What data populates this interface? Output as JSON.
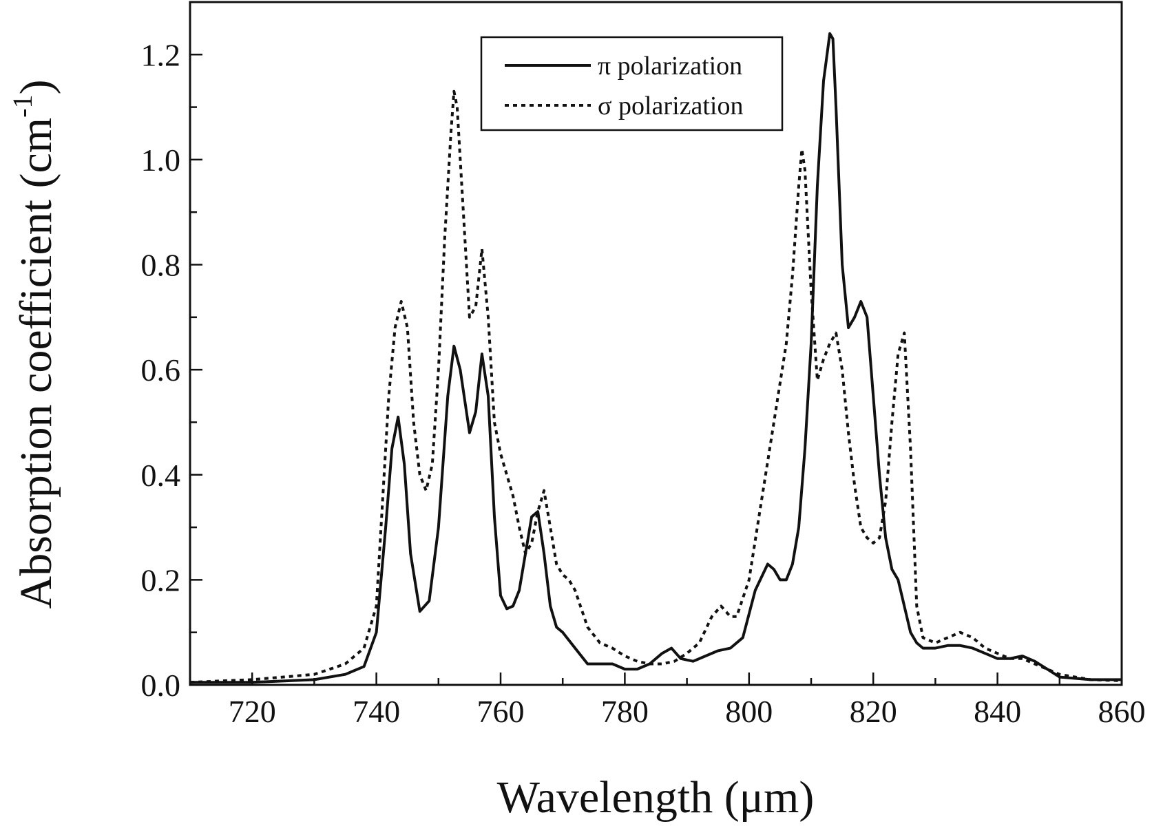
{
  "chart_data": {
    "type": "line",
    "xlabel": "Wavelength (μm)",
    "ylabel": "Absorption coefficient (cm",
    "ylabel_sup": "-1",
    "ylabel_close": ")",
    "xlim": [
      710,
      860
    ],
    "ylim": [
      0,
      1.3
    ],
    "x_ticks": [
      720,
      740,
      760,
      780,
      800,
      820,
      840,
      860
    ],
    "x_tick_labels": [
      "720",
      "740",
      "760",
      "780",
      "800",
      "820",
      "840",
      "860"
    ],
    "y_ticks": [
      0,
      0.2,
      0.4,
      0.6,
      0.8,
      1.0,
      1.2
    ],
    "y_tick_labels": [
      "0.0",
      "0.2",
      "0.4",
      "0.6",
      "0.8",
      "1.0",
      "1.2"
    ],
    "grid": false,
    "legend_position": "top-center",
    "series": [
      {
        "name": "π polarization",
        "line_style": "solid",
        "color": "#111111",
        "x": [
          710,
          720,
          730,
          735,
          738,
          740,
          741.5,
          742.5,
          743.5,
          744.5,
          745.5,
          747,
          748.5,
          750,
          751.5,
          752.5,
          753.5,
          755,
          756,
          757,
          758,
          759,
          760,
          761,
          762,
          763,
          764,
          765,
          766,
          767,
          768,
          769,
          770,
          772,
          774,
          776,
          778,
          780,
          782,
          784,
          786,
          787.5,
          789,
          791,
          793,
          795,
          797,
          799,
          801,
          803,
          804,
          805,
          806,
          807,
          808,
          809,
          810,
          811,
          812,
          813,
          813.5,
          814,
          815,
          816,
          817,
          818,
          819,
          820,
          821,
          822,
          823,
          824,
          825,
          826,
          827,
          828,
          830,
          832,
          834,
          836,
          838,
          840,
          842,
          844,
          846,
          848,
          850,
          855,
          860
        ],
        "y": [
          0.005,
          0.005,
          0.01,
          0.02,
          0.035,
          0.1,
          0.3,
          0.45,
          0.51,
          0.42,
          0.25,
          0.14,
          0.16,
          0.3,
          0.55,
          0.645,
          0.6,
          0.48,
          0.52,
          0.63,
          0.55,
          0.32,
          0.17,
          0.145,
          0.15,
          0.18,
          0.25,
          0.32,
          0.33,
          0.25,
          0.15,
          0.11,
          0.1,
          0.07,
          0.04,
          0.04,
          0.04,
          0.03,
          0.03,
          0.04,
          0.06,
          0.07,
          0.05,
          0.045,
          0.055,
          0.065,
          0.07,
          0.09,
          0.18,
          0.23,
          0.22,
          0.2,
          0.2,
          0.23,
          0.3,
          0.45,
          0.65,
          0.95,
          1.15,
          1.24,
          1.23,
          1.1,
          0.8,
          0.68,
          0.7,
          0.73,
          0.7,
          0.55,
          0.4,
          0.28,
          0.22,
          0.2,
          0.15,
          0.1,
          0.08,
          0.07,
          0.07,
          0.075,
          0.075,
          0.07,
          0.06,
          0.05,
          0.05,
          0.055,
          0.045,
          0.03,
          0.015,
          0.01,
          0.01
        ]
      },
      {
        "name": "σ polarization",
        "line_style": "dotted",
        "color": "#111111",
        "x": [
          710,
          720,
          730,
          735,
          738,
          740,
          741,
          742,
          743,
          744,
          745,
          746,
          747,
          748,
          749,
          750,
          751,
          752,
          752.5,
          753,
          754,
          755,
          756,
          757,
          758,
          759,
          760,
          761,
          762,
          763,
          764,
          765,
          766,
          767,
          768,
          769,
          770,
          771,
          772,
          774,
          776,
          778,
          780,
          782,
          784,
          786,
          788,
          790,
          792,
          794,
          795.5,
          797,
          798,
          800,
          802,
          804,
          806,
          807,
          808,
          808.5,
          809,
          810,
          811,
          812,
          813,
          814,
          815,
          816,
          817,
          818,
          819,
          820,
          821,
          822,
          823,
          824,
          825,
          826,
          827,
          828,
          830,
          832,
          834,
          836,
          838,
          840,
          842,
          844,
          846,
          848,
          850,
          855,
          860
        ],
        "y": [
          0.005,
          0.01,
          0.02,
          0.04,
          0.07,
          0.15,
          0.35,
          0.55,
          0.68,
          0.73,
          0.68,
          0.5,
          0.4,
          0.37,
          0.42,
          0.6,
          0.85,
          1.05,
          1.13,
          1.1,
          0.9,
          0.7,
          0.72,
          0.83,
          0.7,
          0.5,
          0.44,
          0.4,
          0.36,
          0.3,
          0.25,
          0.27,
          0.33,
          0.37,
          0.3,
          0.23,
          0.21,
          0.2,
          0.18,
          0.11,
          0.08,
          0.07,
          0.055,
          0.045,
          0.04,
          0.04,
          0.045,
          0.06,
          0.08,
          0.13,
          0.15,
          0.13,
          0.13,
          0.2,
          0.35,
          0.5,
          0.65,
          0.78,
          0.95,
          1.02,
          0.98,
          0.75,
          0.58,
          0.62,
          0.65,
          0.67,
          0.6,
          0.48,
          0.38,
          0.3,
          0.28,
          0.27,
          0.28,
          0.35,
          0.5,
          0.63,
          0.67,
          0.45,
          0.15,
          0.09,
          0.08,
          0.09,
          0.1,
          0.09,
          0.07,
          0.06,
          0.05,
          0.05,
          0.04,
          0.03,
          0.02,
          0.01,
          0.008
        ]
      }
    ]
  }
}
